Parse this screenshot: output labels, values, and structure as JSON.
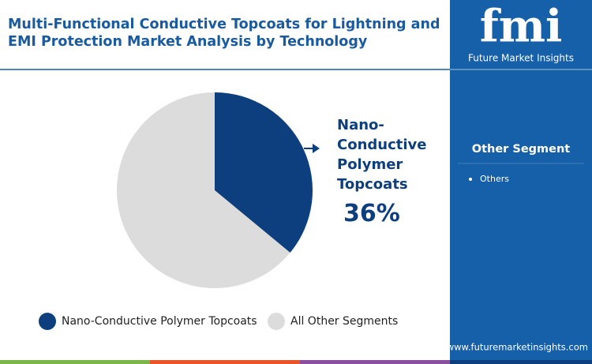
{
  "chart_data": {
    "type": "pie",
    "title": "Multi-Functional Conductive Topcoats for Lightning and EMI Protection Market Analysis by Technology",
    "categories": [
      "Nano-Conductive Polymer Topcoats",
      "All Other Segments"
    ],
    "values": [
      36,
      64
    ],
    "value_labels": [
      "36%",
      null
    ],
    "colors": [
      "#0d3f7f",
      "#dcdcdc"
    ],
    "legend": "bottom"
  },
  "sidebar": {
    "heading": "Other Segment",
    "items": [
      "Others"
    ]
  },
  "brand": {
    "logo": "fmi",
    "name": "Future Market Insights",
    "url": "www.futuremarketinsights.com"
  }
}
